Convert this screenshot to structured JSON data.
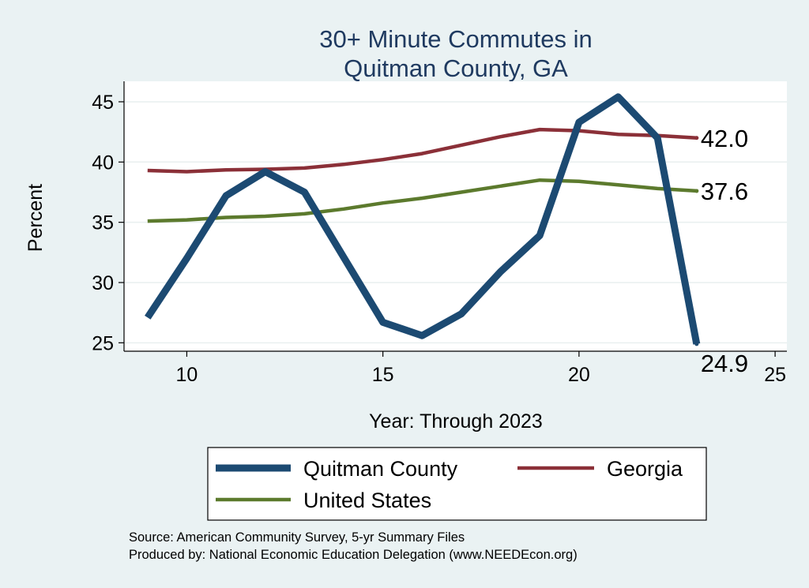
{
  "chart_data": {
    "type": "line",
    "title": [
      "30+ Minute Commutes in",
      "Quitman County, GA"
    ],
    "xlabel": "Year: Through 2023",
    "ylabel": "Percent",
    "xlim": [
      8.4,
      25.3
    ],
    "ylim": [
      24.3,
      46.7
    ],
    "xticks": [
      10,
      15,
      20,
      25
    ],
    "yticks": [
      25,
      30,
      35,
      40,
      45
    ],
    "grid": true,
    "x": [
      9,
      10,
      11,
      12,
      13,
      14,
      15,
      16,
      17,
      18,
      19,
      20,
      21,
      22,
      23
    ],
    "series": [
      {
        "name": "Quitman County",
        "color": "#1c4a72",
        "line": "thick",
        "values": [
          27.1,
          32.0,
          37.2,
          39.2,
          37.5,
          32.1,
          26.7,
          25.6,
          27.4,
          30.9,
          33.9,
          43.3,
          45.4,
          42.0,
          24.9
        ],
        "end_label": "24.9"
      },
      {
        "name": "Georgia",
        "color": "#8b3038",
        "line": "thin",
        "values": [
          39.3,
          39.2,
          39.35,
          39.4,
          39.5,
          39.8,
          40.2,
          40.7,
          41.4,
          42.1,
          42.7,
          42.6,
          42.3,
          42.2,
          42.0
        ],
        "end_label": "42.0"
      },
      {
        "name": "United States",
        "color": "#5c7a2d",
        "line": "thin",
        "values": [
          35.1,
          35.2,
          35.4,
          35.5,
          35.7,
          36.1,
          36.6,
          37.0,
          37.5,
          38.0,
          38.5,
          38.4,
          38.1,
          37.8,
          37.6
        ],
        "end_label": "37.6"
      }
    ],
    "legend": {
      "placement": "bottom",
      "entries": [
        "Quitman County",
        "Georgia",
        "United States"
      ]
    }
  },
  "source_note": {
    "line1": "Source: American Community Survey, 5-yr Summary Files",
    "line2": "Produced by: National Economic Education Delegation (www.NEEDEcon.org)"
  }
}
